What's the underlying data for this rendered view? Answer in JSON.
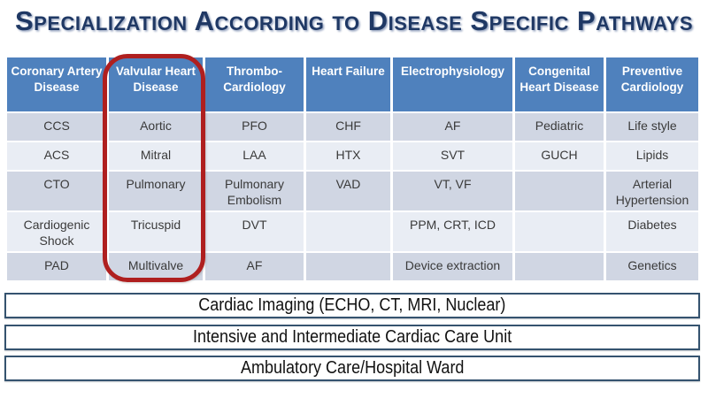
{
  "title": "Specialization According to Disease Specific Pathways",
  "table": {
    "columns": [
      {
        "id": "coronary-artery-disease",
        "label": "Coronary Artery Disease"
      },
      {
        "id": "valvular-heart-disease",
        "label": "Valvular Heart Disease"
      },
      {
        "id": "thrombo-cardiology",
        "label": "Thrombo-Cardiology"
      },
      {
        "id": "heart-failure",
        "label": "Heart Failure"
      },
      {
        "id": "electrophysiology",
        "label": "Electrophysiology"
      },
      {
        "id": "congenital-heart-disease",
        "label": "Congenital Heart Disease"
      },
      {
        "id": "preventive-cardiology",
        "label": "Preventive Cardiology"
      }
    ],
    "rows": [
      [
        "CCS",
        "Aortic",
        "PFO",
        "CHF",
        "AF",
        "Pediatric",
        "Life style"
      ],
      [
        "ACS",
        "Mitral",
        "LAA",
        "HTX",
        "SVT",
        "GUCH",
        "Lipids"
      ],
      [
        "CTO",
        "Pulmonary",
        "Pulmonary Embolism",
        "VAD",
        "VT, VF",
        "",
        "Arterial Hypertension"
      ],
      [
        "Cardiogenic Shock",
        "Tricuspid",
        "DVT",
        "",
        "PPM, CRT, ICD",
        "",
        "Diabetes"
      ],
      [
        "PAD",
        "Multivalve",
        "AF",
        "",
        "Device extraction",
        "",
        "Genetics"
      ]
    ]
  },
  "highlight": {
    "highlighted_column": "Valvular Heart Disease",
    "shape": "rounded-rectangle-oval"
  },
  "bottom_bands": [
    "Cardiac Imaging (ECHO, CT, MRI, Nuclear)",
    "Intensive and Intermediate Cardiac Care Unit",
    "Ambulatory Care/Hospital Ward"
  ],
  "colors": {
    "title": "#1F3864",
    "header_bg": "#4F81BD",
    "row_band_dark": "#D0D6E3",
    "row_band_light": "#E9EDF4",
    "oval_red": "#AF1F1F",
    "bar_border": "#35536F"
  }
}
